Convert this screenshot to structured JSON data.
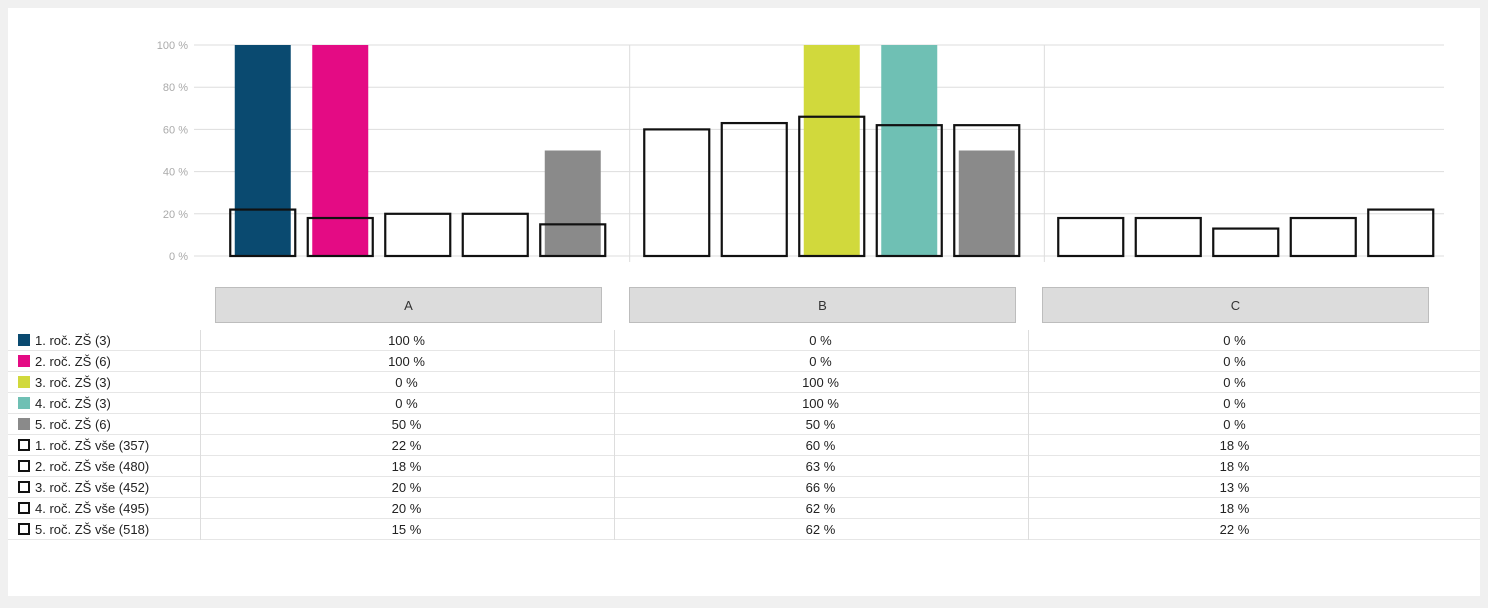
{
  "chart_data": {
    "type": "bar",
    "categories": [
      "A",
      "B",
      "C"
    ],
    "y_ticks": [
      "0 %",
      "20 %",
      "40 %",
      "60 %",
      "80 %",
      "100 %"
    ],
    "ylim": [
      0,
      100
    ],
    "grid": true,
    "series": [
      {
        "name": "1. roč. ZŠ (3)",
        "style": "filled",
        "color": "#0a4a70",
        "values": [
          100,
          0,
          0
        ],
        "labels": [
          "100 %",
          "0 %",
          "0 %"
        ]
      },
      {
        "name": "2. roč. ZŠ (6)",
        "style": "filled",
        "color": "#e40b84",
        "values": [
          100,
          0,
          0
        ],
        "labels": [
          "100 %",
          "0 %",
          "0 %"
        ]
      },
      {
        "name": "3. roč. ZŠ (3)",
        "style": "filled",
        "color": "#d1d93c",
        "values": [
          0,
          100,
          0
        ],
        "labels": [
          "0 %",
          "100 %",
          "0 %"
        ]
      },
      {
        "name": "4. roč. ZŠ (3)",
        "style": "filled",
        "color": "#6fc0b4",
        "values": [
          0,
          100,
          0
        ],
        "labels": [
          "0 %",
          "100 %",
          "0 %"
        ]
      },
      {
        "name": "5. roč. ZŠ (6)",
        "style": "filled",
        "color": "#8a8a8a",
        "values": [
          50,
          50,
          0
        ],
        "labels": [
          "50 %",
          "50 %",
          "0 %"
        ]
      },
      {
        "name": "1. roč. ZŠ vše (357)",
        "style": "outline",
        "color": "#111111",
        "values": [
          22,
          60,
          18
        ],
        "labels": [
          "22 %",
          "60 %",
          "18 %"
        ]
      },
      {
        "name": "2. roč. ZŠ vše (480)",
        "style": "outline",
        "color": "#111111",
        "values": [
          18,
          63,
          18
        ],
        "labels": [
          "18 %",
          "63 %",
          "18 %"
        ]
      },
      {
        "name": "3. roč. ZŠ vše (452)",
        "style": "outline",
        "color": "#111111",
        "values": [
          20,
          66,
          13
        ],
        "labels": [
          "20 %",
          "66 %",
          "13 %"
        ]
      },
      {
        "name": "4. roč. ZŠ vše (495)",
        "style": "outline",
        "color": "#111111",
        "values": [
          20,
          62,
          18
        ],
        "labels": [
          "20 %",
          "62 %",
          "18 %"
        ]
      },
      {
        "name": "5. roč. ZŠ vše (518)",
        "style": "outline",
        "color": "#111111",
        "values": [
          15,
          62,
          22
        ],
        "labels": [
          "15 %",
          "62 %",
          "22 %"
        ]
      }
    ]
  }
}
